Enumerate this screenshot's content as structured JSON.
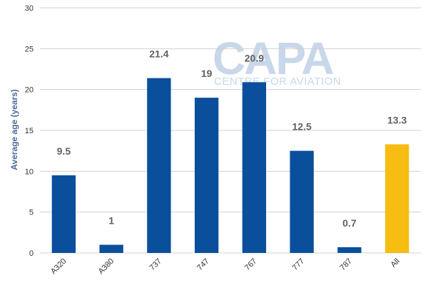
{
  "watermark": {
    "logo_text": "CAPA",
    "tagline": "CENTRE FOR AVIATION"
  },
  "chart_data": {
    "type": "bar",
    "title": "",
    "xlabel": "",
    "ylabel": "Average age (years)",
    "ylim": [
      0,
      30
    ],
    "yticks": [
      0,
      5,
      10,
      15,
      20,
      25,
      30
    ],
    "categories": [
      "A320",
      "A380",
      "737",
      "747",
      "767",
      "777",
      "787",
      "All"
    ],
    "values": [
      9.5,
      1,
      21.4,
      19,
      20.9,
      12.5,
      0.7,
      13.3
    ],
    "value_labels": [
      "9.5",
      "1",
      "21.4",
      "19",
      "20.9",
      "12.5",
      "0.7",
      "13.3"
    ],
    "colors": {
      "bar": "#0a4f9c",
      "highlight": "#f7bd12",
      "grid": "#d0d0d0"
    },
    "highlight_category": "All",
    "grid": true,
    "legend": "none"
  }
}
